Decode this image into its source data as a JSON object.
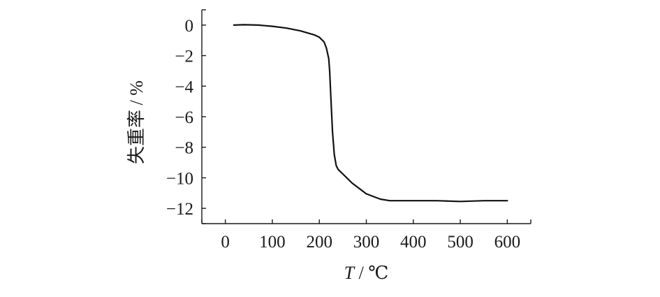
{
  "chart_data": {
    "type": "line",
    "title": "",
    "xlabel": "T / ℃",
    "xlabel_var": "T",
    "xlabel_unit": " / ℃",
    "ylabel": "失重率 / %",
    "xlim": [
      -50,
      650
    ],
    "ylim": [
      -13,
      1
    ],
    "xticks": [
      0,
      100,
      200,
      300,
      400,
      500,
      600
    ],
    "yticks": [
      0,
      -2,
      -4,
      -6,
      -8,
      -10,
      -12
    ],
    "xtick_labels": [
      "0",
      "100",
      "200",
      "300",
      "400",
      "500",
      "600"
    ],
    "ytick_labels": [
      "0",
      "−2",
      "−4",
      "−6",
      "−8",
      "−10",
      "−12"
    ],
    "grid": false,
    "series": [
      {
        "color": "#111111",
        "x": [
          18,
          40,
          70,
          100,
          130,
          160,
          190,
          200,
          210,
          215,
          220,
          222,
          225,
          228,
          232,
          236,
          240,
          250,
          270,
          300,
          330,
          350,
          370,
          400,
          450,
          500,
          550,
          600
        ],
        "y": [
          0.0,
          0.02,
          0.0,
          -0.08,
          -0.2,
          -0.38,
          -0.65,
          -0.8,
          -1.1,
          -1.5,
          -2.2,
          -3.0,
          -5.0,
          -7.0,
          -8.5,
          -9.2,
          -9.45,
          -9.75,
          -10.35,
          -11.05,
          -11.4,
          -11.5,
          -11.5,
          -11.5,
          -11.5,
          -11.55,
          -11.5,
          -11.5
        ]
      }
    ]
  }
}
